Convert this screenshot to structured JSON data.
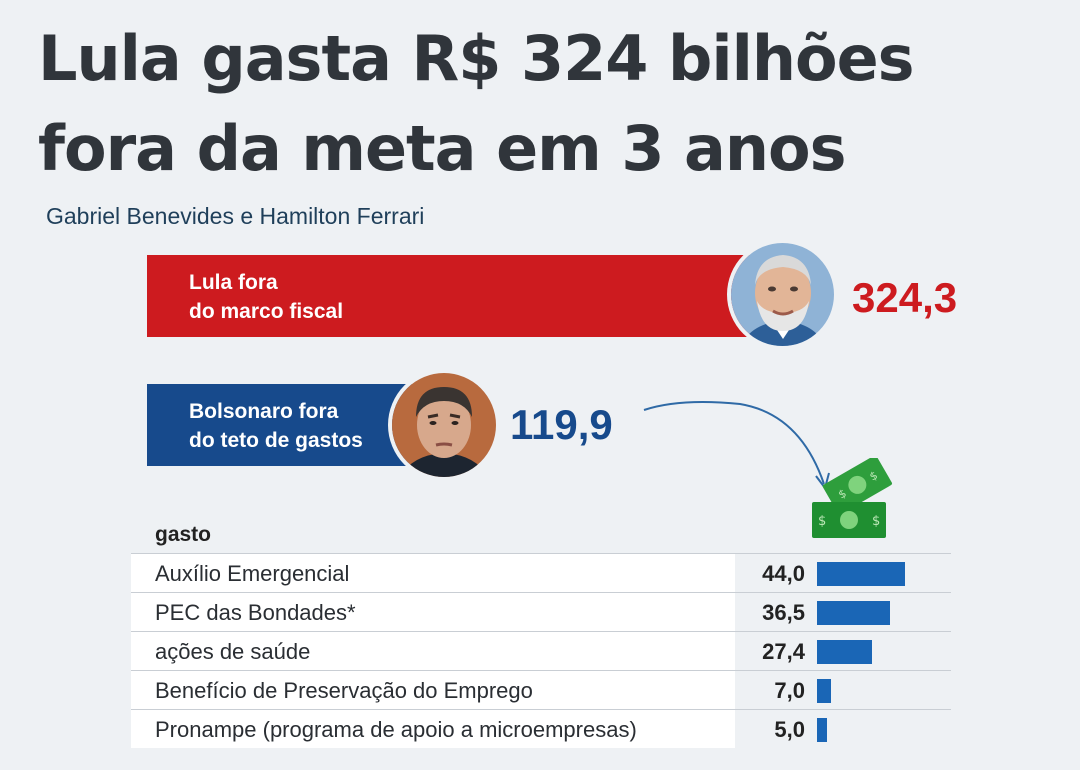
{
  "headline": "Lula gasta R$ 324 bilhões fora da meta em 3 anos",
  "byline": "Gabriel Benevides e Hamilton Ferrari",
  "chart_data": [
    {
      "type": "bar",
      "orientation": "horizontal",
      "categories": [
        "Lula fora do marco fiscal",
        "Bolsonaro fora do teto de gastos"
      ],
      "category_lines": [
        [
          "Lula fora",
          "do marco fiscal"
        ],
        [
          "Bolsonaro fora",
          "do teto de gastos"
        ]
      ],
      "values": [
        324.3,
        119.9
      ],
      "value_labels": [
        "324,3",
        "119,9"
      ],
      "colors": [
        "#cd1b1f",
        "#174a8c"
      ]
    },
    {
      "type": "bar",
      "orientation": "horizontal",
      "column_header": "gasto",
      "categories": [
        "Auxílio Emergencial",
        "PEC das Bondades*",
        "ações de saúde",
        "Benefício de Preservação do Emprego",
        "Pronampe (programa de apoio a microempresas)"
      ],
      "values": [
        44.0,
        36.5,
        27.4,
        7.0,
        5.0
      ],
      "value_labels": [
        "44,0",
        "36,5",
        "27,4",
        "7,0",
        "5,0"
      ],
      "color": "#1a66b6"
    }
  ],
  "icons": {
    "lula_photo": "lula-portrait-icon",
    "bolsonaro_photo": "bolsonaro-portrait-icon",
    "money": "money-bills-icon",
    "arrow": "curved-arrow-icon"
  }
}
